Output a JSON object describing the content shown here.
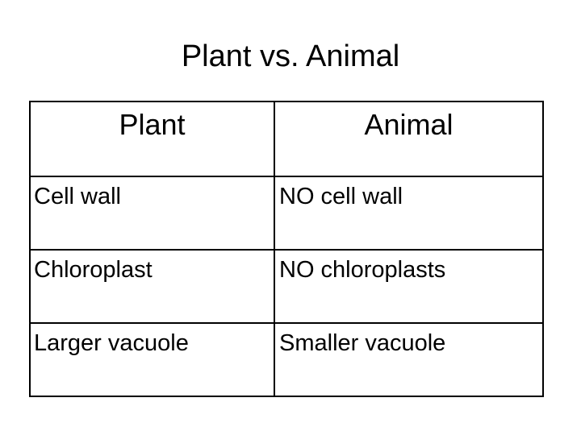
{
  "slide": {
    "title": "Plant vs. Animal"
  },
  "table": {
    "headers": [
      "Plant",
      "Animal"
    ],
    "rows": [
      [
        "Cell wall",
        "NO cell wall"
      ],
      [
        "Chloroplast",
        "NO chloroplasts"
      ],
      [
        "Larger vacuole",
        "Smaller vacuole"
      ]
    ]
  },
  "colors": {
    "text": "#000000",
    "background": "#ffffff",
    "border": "#000000"
  }
}
